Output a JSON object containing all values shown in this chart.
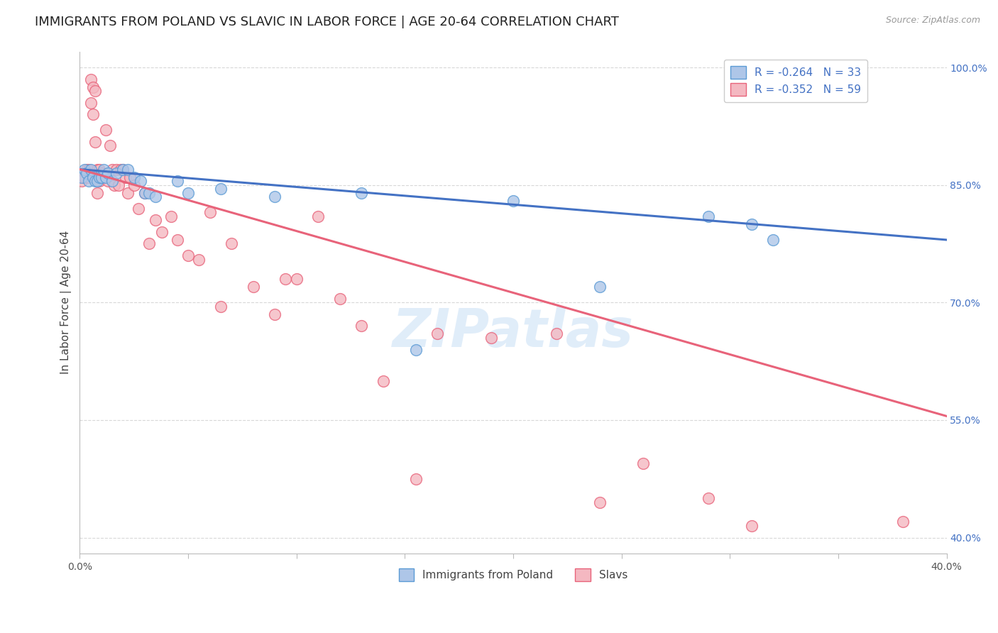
{
  "title": "IMMIGRANTS FROM POLAND VS SLAVIC IN LABOR FORCE | AGE 20-64 CORRELATION CHART",
  "source": "Source: ZipAtlas.com",
  "ylabel": "In Labor Force | Age 20-64",
  "xlim": [
    0.0,
    0.4
  ],
  "ylim": [
    0.38,
    1.02
  ],
  "xticks": [
    0.0,
    0.05,
    0.1,
    0.15,
    0.2,
    0.25,
    0.3,
    0.35,
    0.4
  ],
  "xticklabels": [
    "0.0%",
    "",
    "",
    "",
    "",
    "",
    "",
    "",
    "40.0%"
  ],
  "yticks_right": [
    0.4,
    0.55,
    0.7,
    0.85,
    1.0
  ],
  "yticklabels_right": [
    "40.0%",
    "55.0%",
    "70.0%",
    "85.0%",
    "100.0%"
  ],
  "background_color": "#ffffff",
  "grid_color": "#d8d8d8",
  "poland_color": "#aec6e8",
  "slavs_color": "#f4b8c1",
  "poland_edge_color": "#5b9bd5",
  "slavs_edge_color": "#e8637a",
  "poland_line_color": "#4472c4",
  "slavs_line_color": "#e8637a",
  "legend_poland_R": "-0.264",
  "legend_poland_N": "33",
  "legend_slavs_R": "-0.352",
  "legend_slavs_N": "59",
  "legend_label_poland": "Immigrants from Poland",
  "legend_label_slavs": "Slavs",
  "poland_trend_x0": 0.0,
  "poland_trend_y0": 0.87,
  "poland_trend_x1": 0.4,
  "poland_trend_y1": 0.78,
  "slavs_trend_x0": 0.0,
  "slavs_trend_y0": 0.87,
  "slavs_trend_x1": 0.4,
  "slavs_trend_y1": 0.555,
  "poland_x": [
    0.001,
    0.002,
    0.003,
    0.004,
    0.005,
    0.006,
    0.007,
    0.008,
    0.009,
    0.01,
    0.011,
    0.012,
    0.013,
    0.015,
    0.017,
    0.02,
    0.022,
    0.025,
    0.028,
    0.03,
    0.032,
    0.035,
    0.045,
    0.05,
    0.065,
    0.09,
    0.13,
    0.155,
    0.2,
    0.24,
    0.29,
    0.31,
    0.32
  ],
  "poland_y": [
    0.86,
    0.87,
    0.865,
    0.855,
    0.87,
    0.86,
    0.855,
    0.855,
    0.86,
    0.86,
    0.87,
    0.86,
    0.865,
    0.855,
    0.865,
    0.87,
    0.87,
    0.86,
    0.855,
    0.84,
    0.84,
    0.835,
    0.855,
    0.84,
    0.845,
    0.835,
    0.84,
    0.64,
    0.83,
    0.72,
    0.81,
    0.8,
    0.78
  ],
  "slavs_x": [
    0.001,
    0.002,
    0.003,
    0.004,
    0.004,
    0.005,
    0.005,
    0.006,
    0.006,
    0.007,
    0.007,
    0.008,
    0.008,
    0.009,
    0.009,
    0.01,
    0.011,
    0.012,
    0.013,
    0.014,
    0.015,
    0.016,
    0.017,
    0.018,
    0.019,
    0.02,
    0.021,
    0.022,
    0.023,
    0.025,
    0.027,
    0.03,
    0.032,
    0.035,
    0.038,
    0.042,
    0.045,
    0.05,
    0.055,
    0.06,
    0.065,
    0.07,
    0.08,
    0.09,
    0.095,
    0.1,
    0.11,
    0.12,
    0.13,
    0.14,
    0.155,
    0.165,
    0.19,
    0.22,
    0.24,
    0.26,
    0.29,
    0.31,
    0.38
  ],
  "slavs_y": [
    0.855,
    0.86,
    0.87,
    0.86,
    0.87,
    0.955,
    0.985,
    0.975,
    0.94,
    0.97,
    0.905,
    0.87,
    0.84,
    0.87,
    0.855,
    0.865,
    0.86,
    0.92,
    0.855,
    0.9,
    0.87,
    0.85,
    0.87,
    0.85,
    0.87,
    0.87,
    0.86,
    0.84,
    0.86,
    0.85,
    0.82,
    0.84,
    0.775,
    0.805,
    0.79,
    0.81,
    0.78,
    0.76,
    0.755,
    0.815,
    0.695,
    0.775,
    0.72,
    0.685,
    0.73,
    0.73,
    0.81,
    0.705,
    0.67,
    0.6,
    0.475,
    0.66,
    0.655,
    0.66,
    0.445,
    0.495,
    0.45,
    0.415,
    0.42
  ],
  "watermark_text": "ZIPatlas",
  "title_fontsize": 13,
  "axis_label_fontsize": 11,
  "tick_fontsize": 10,
  "legend_fontsize": 11
}
